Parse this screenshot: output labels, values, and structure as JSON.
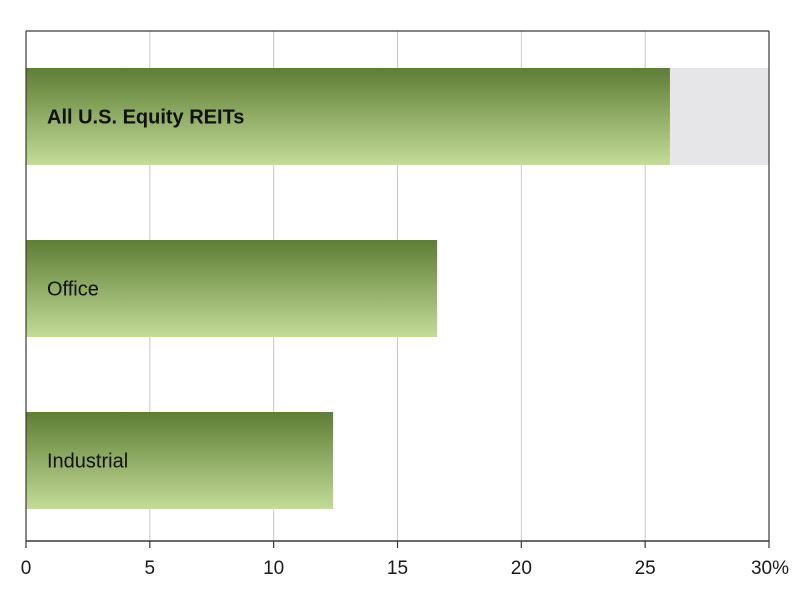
{
  "chart_data": {
    "type": "bar",
    "orientation": "horizontal",
    "title": "",
    "xlabel": "",
    "ylabel": "",
    "categories": [
      "All U.S. Equity REITs",
      "Office",
      "Industrial"
    ],
    "values": [
      26.0,
      16.6,
      12.4
    ],
    "xlim": [
      0,
      30
    ],
    "ticks": [
      0,
      5,
      10,
      15,
      20,
      25,
      30
    ],
    "tick_labels": [
      "0",
      "5",
      "10",
      "15",
      "20",
      "25",
      "30%"
    ],
    "highlight_track_category": "All U.S. Equity REITs",
    "grid": "vertical",
    "legend": "none",
    "colors": {
      "bar_top": "#5e7d35",
      "bar_bottom": "#c3dc98",
      "track": "#e6e6e8",
      "grid": "#c8c8c8",
      "axis": "#3a3a3a"
    }
  }
}
